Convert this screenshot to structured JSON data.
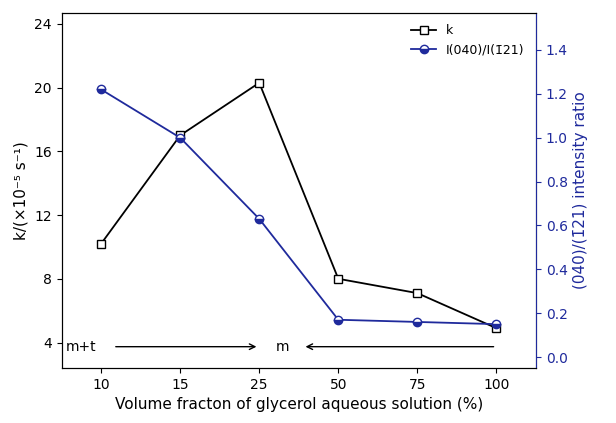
{
  "chart_data": {
    "type": "line",
    "x_label": "Volume fracton of glycerol aqueous solution (%)",
    "y_label": "k/(×10⁻⁵ s⁻¹)",
    "y2_label": "(040)/(1̄21) intensity ratio",
    "categories": [
      "10",
      "15",
      "25",
      "50",
      "75",
      "100"
    ],
    "series": [
      {
        "name": "k",
        "color": "#000000",
        "marker": "square",
        "line_style": "solid",
        "values": [
          10.2,
          17.0,
          20.3,
          8.0,
          7.1,
          4.9
        ]
      },
      {
        "name": "I(040)/I(1̄21)",
        "color": "#1f2a9c",
        "marker": "circle",
        "line_style": "solid",
        "axis": "y2",
        "values": [
          1.22,
          1.0,
          0.63,
          0.17,
          0.16,
          0.15
        ]
      }
    ],
    "ylim": [
      2.4,
      24.7
    ],
    "yticks": [
      4,
      8,
      12,
      16,
      20,
      24
    ],
    "y2lim": [
      -0.05,
      1.57
    ],
    "y2ticks": [
      {
        "value": 0.0,
        "label": "0.0"
      },
      0.2,
      0.4,
      0.6,
      0.8,
      {
        "value": 1.0,
        "label": "1.0"
      },
      1.2,
      1.4
    ],
    "annotations": [
      "m+t",
      "m"
    ],
    "legend": "upper right",
    "grid": false
  }
}
